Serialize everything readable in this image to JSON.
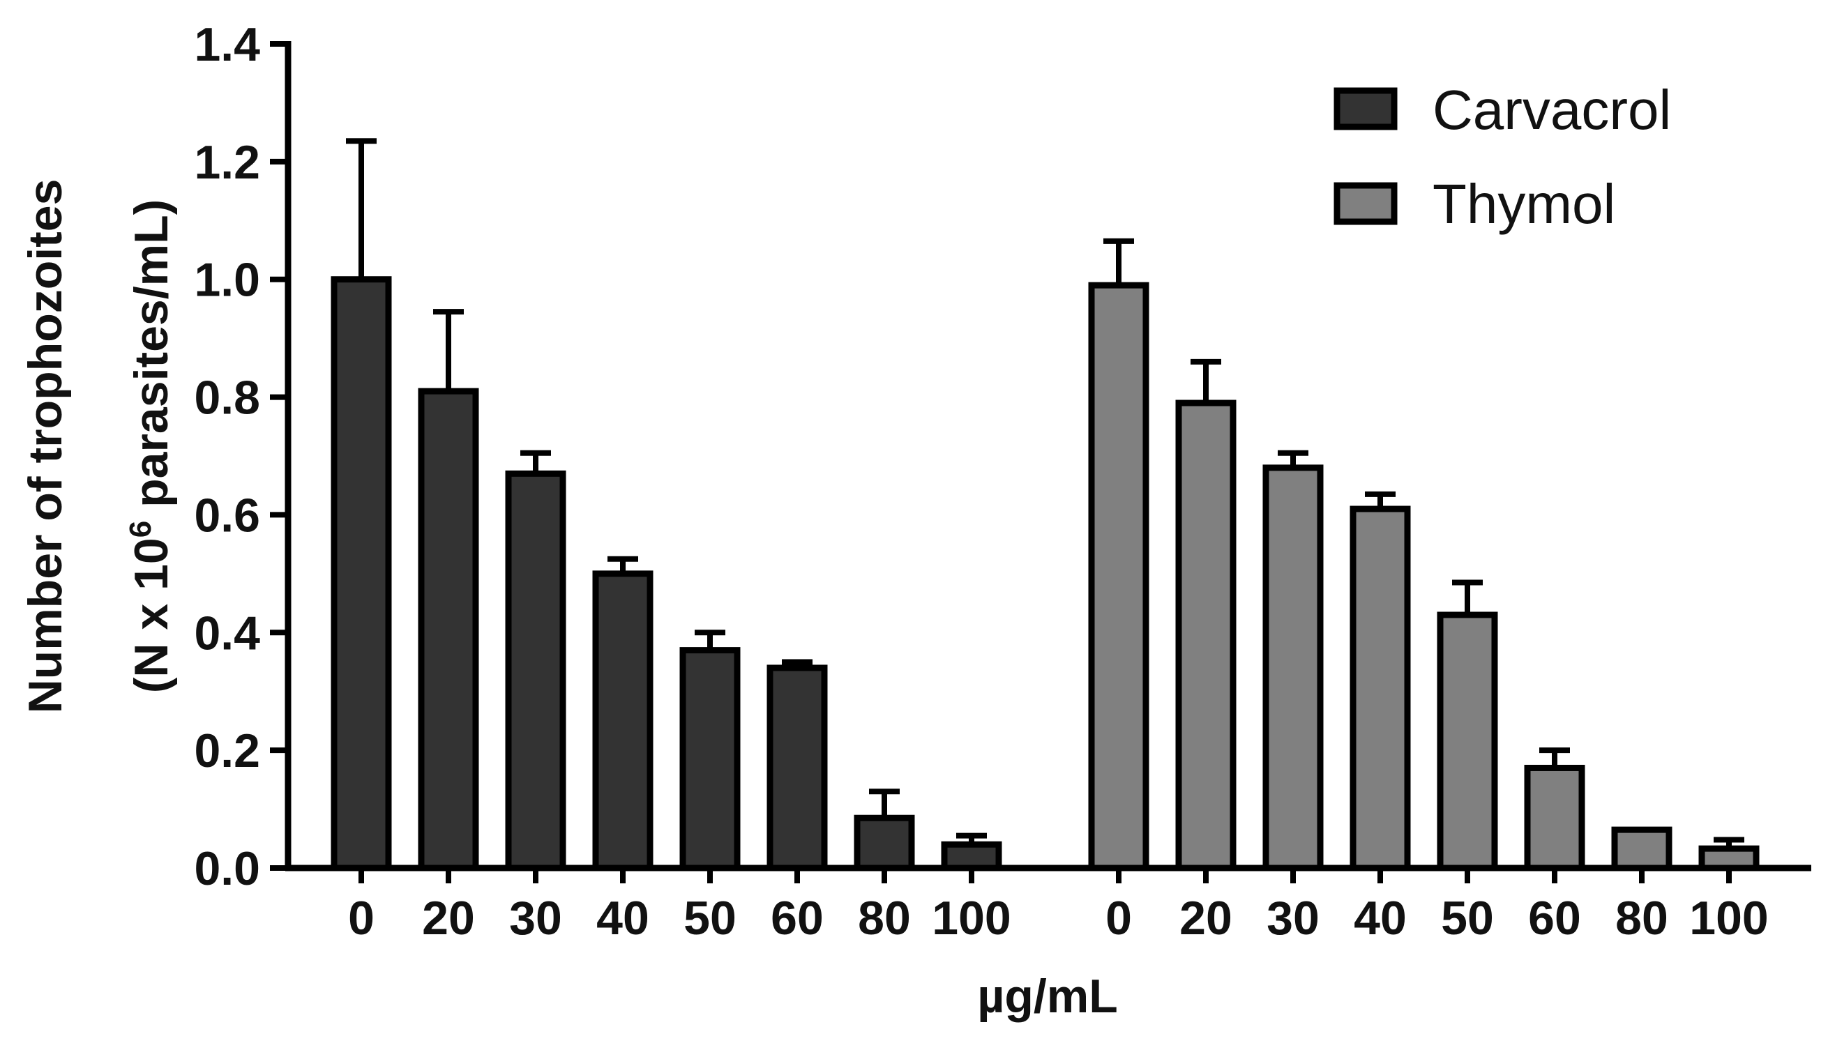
{
  "chart_data": {
    "type": "bar",
    "title": "",
    "ylabel_line1": "Number of trophozoites",
    "ylabel_line2_prefix": "(N x 10",
    "ylabel_line2_sup": "6",
    "ylabel_line2_suffix": " parasites/mL)",
    "xlabel": "µg/mL",
    "ylim": [
      0,
      1.4
    ],
    "yticks": [
      "0.0",
      "0.2",
      "0.4",
      "0.6",
      "0.8",
      "1.0",
      "1.2",
      "1.4"
    ],
    "ytick_values": [
      0,
      0.2,
      0.4,
      0.6,
      0.8,
      1.0,
      1.2,
      1.4
    ],
    "legend_position": "top-right",
    "series": [
      {
        "name": "Carvacrol",
        "color": "#333333",
        "categories": [
          "0",
          "20",
          "30",
          "40",
          "50",
          "60",
          "80",
          "100"
        ],
        "values": [
          1.0,
          0.81,
          0.67,
          0.5,
          0.37,
          0.34,
          0.085,
          0.04
        ],
        "errors": [
          0.235,
          0.135,
          0.035,
          0.025,
          0.03,
          0.01,
          0.045,
          0.015
        ]
      },
      {
        "name": "Thymol",
        "color": "#808080",
        "categories": [
          "0",
          "20",
          "30",
          "40",
          "50",
          "60",
          "80",
          "100"
        ],
        "values": [
          0.99,
          0.79,
          0.68,
          0.61,
          0.43,
          0.17,
          0.065,
          0.033
        ],
        "errors": [
          0.075,
          0.07,
          0.025,
          0.025,
          0.055,
          0.03,
          0.0,
          0.015
        ]
      }
    ]
  }
}
